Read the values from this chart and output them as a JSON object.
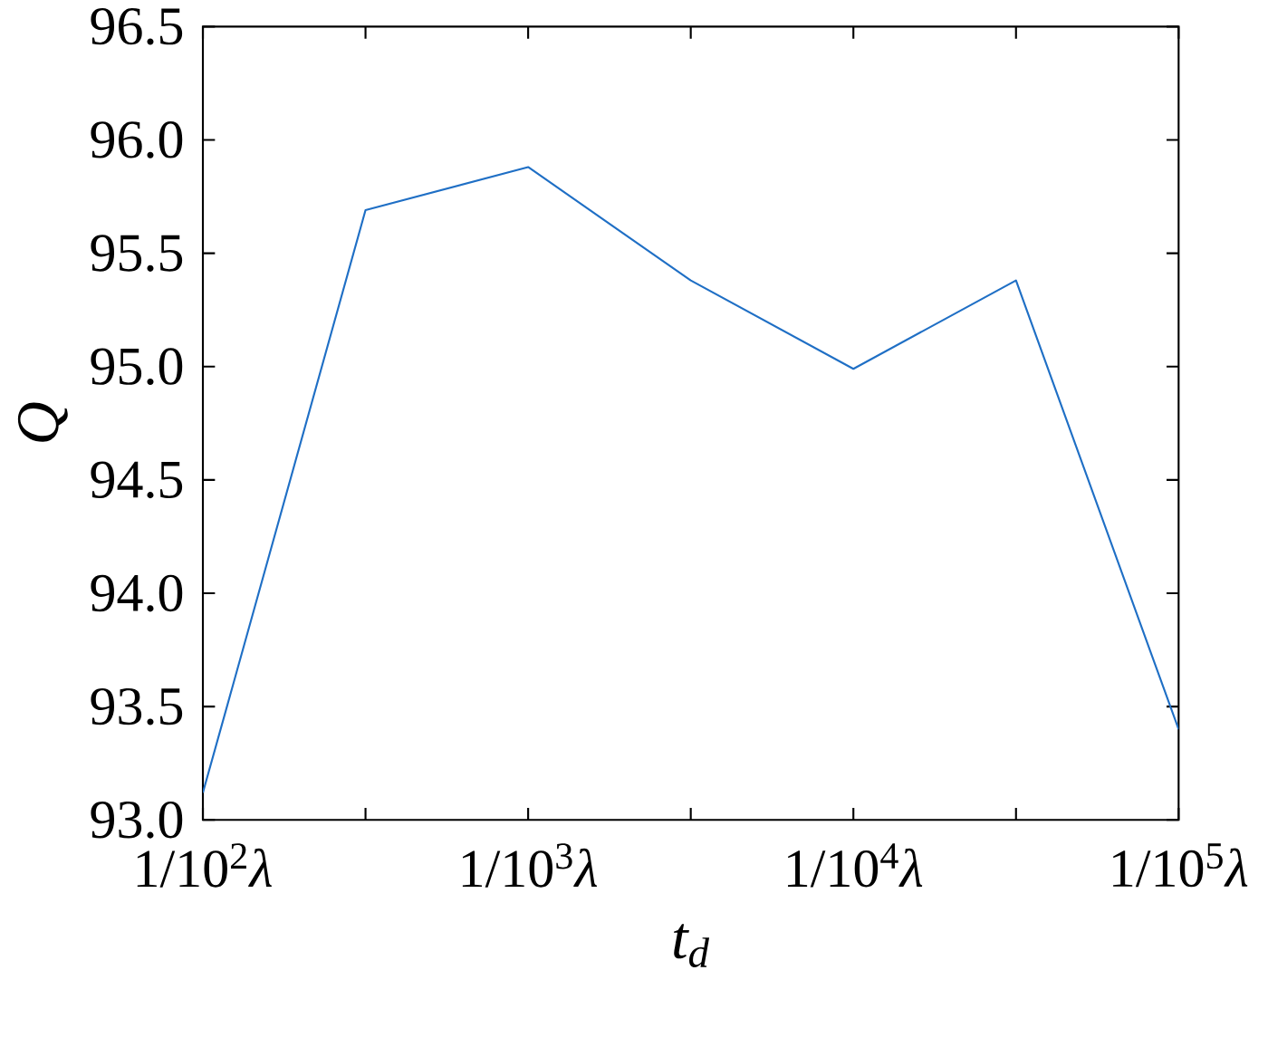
{
  "chart_data": {
    "type": "line",
    "xlabel": "t$_{d}$",
    "ylabel": "Q",
    "categories": [
      "1/10$^{2}$*λ*",
      null,
      "1/10$^{3}$*λ*",
      null,
      "1/10$^{4}$*λ*",
      null,
      "1/10$^{5}$*λ*"
    ],
    "series": [
      {
        "color": "#1f6fc5",
        "values": [
          93.12,
          95.69,
          95.88,
          95.38,
          94.99,
          95.38,
          93.4
        ]
      }
    ],
    "ylim": [
      93.0,
      96.5
    ],
    "yticks": [
      {
        "value": 93.0,
        "label": "93.0"
      },
      {
        "value": 93.5,
        "label": "93.5"
      },
      {
        "value": 94.0,
        "label": "94.0"
      },
      {
        "value": 94.5,
        "label": "94.5"
      },
      {
        "value": 95.0,
        "label": "95.0"
      },
      {
        "value": 95.5,
        "label": "95.5"
      },
      {
        "value": 96.0,
        "label": "96.0"
      },
      {
        "value": 96.5,
        "label": "96.5"
      }
    ],
    "grid": false,
    "marker": "none",
    "line_style": "solid"
  }
}
